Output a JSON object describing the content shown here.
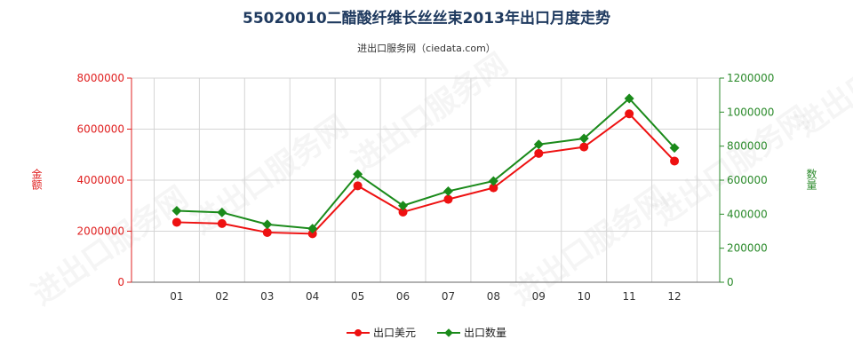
{
  "chart_data": {
    "type": "line",
    "title": "55020010二醋酸纤维长丝丝束2013年出口月度走势",
    "subtitle": "进出口服务网（ciedata.com）",
    "categories": [
      "01",
      "02",
      "03",
      "04",
      "05",
      "06",
      "07",
      "08",
      "09",
      "10",
      "11",
      "12"
    ],
    "ylabel_left": "金额",
    "ylabel_right": "数量",
    "ylim_left": [
      0,
      8000000
    ],
    "ylim_right": [
      0,
      1200000
    ],
    "yticks_left": [
      "0",
      "2000000",
      "4000000",
      "6000000",
      "8000000"
    ],
    "yticks_right": [
      "0",
      "200000",
      "400000",
      "600000",
      "800000",
      "1000000",
      "1200000"
    ],
    "grid": true,
    "legend_position": "bottom",
    "series": [
      {
        "name": "出口美元",
        "axis": "left",
        "color": "#ee1111",
        "marker": "circle",
        "values": [
          2350000,
          2300000,
          1950000,
          1900000,
          3780000,
          2750000,
          3250000,
          3700000,
          5050000,
          5300000,
          6600000,
          4750000
        ]
      },
      {
        "name": "出口数量",
        "axis": "right",
        "color": "#1a8a1a",
        "marker": "diamond",
        "values": [
          420000,
          410000,
          340000,
          315000,
          635000,
          450000,
          535000,
          595000,
          810000,
          845000,
          1080000,
          790000
        ]
      }
    ]
  },
  "watermark": "进出口服务网"
}
